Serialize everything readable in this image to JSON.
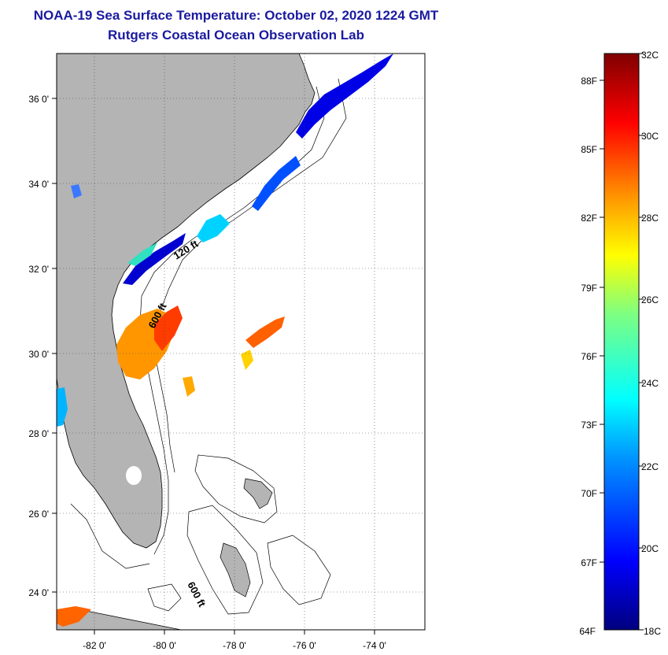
{
  "header": {
    "title": "NOAA-19 Sea Surface Temperature:  October 02, 2020 1224 GMT",
    "subtitle": "Rutgers Coastal Ocean Observation Lab"
  },
  "map": {
    "lat_labels": [
      "36 0'",
      "34 0'",
      "32 0'",
      "30 0'",
      "28 0'",
      "26 0'",
      "24 0'"
    ],
    "lon_labels": [
      "-82 0'",
      "-80 0'",
      "-78 0'",
      "-76 0'",
      "-74 0'"
    ],
    "contour_labels": [
      "120 ft",
      "600 ft",
      "600 ft"
    ],
    "land_color": "#b4b4b4",
    "grid": true
  },
  "colorbar": {
    "celsius_labels": [
      "32C",
      "30C",
      "28C",
      "26C",
      "24C",
      "22C",
      "20C",
      "18C"
    ],
    "fahrenheit_labels": [
      "88F",
      "85F",
      "82F",
      "79F",
      "76F",
      "73F",
      "70F",
      "67F",
      "64F"
    ],
    "range_c": [
      18,
      32
    ]
  }
}
